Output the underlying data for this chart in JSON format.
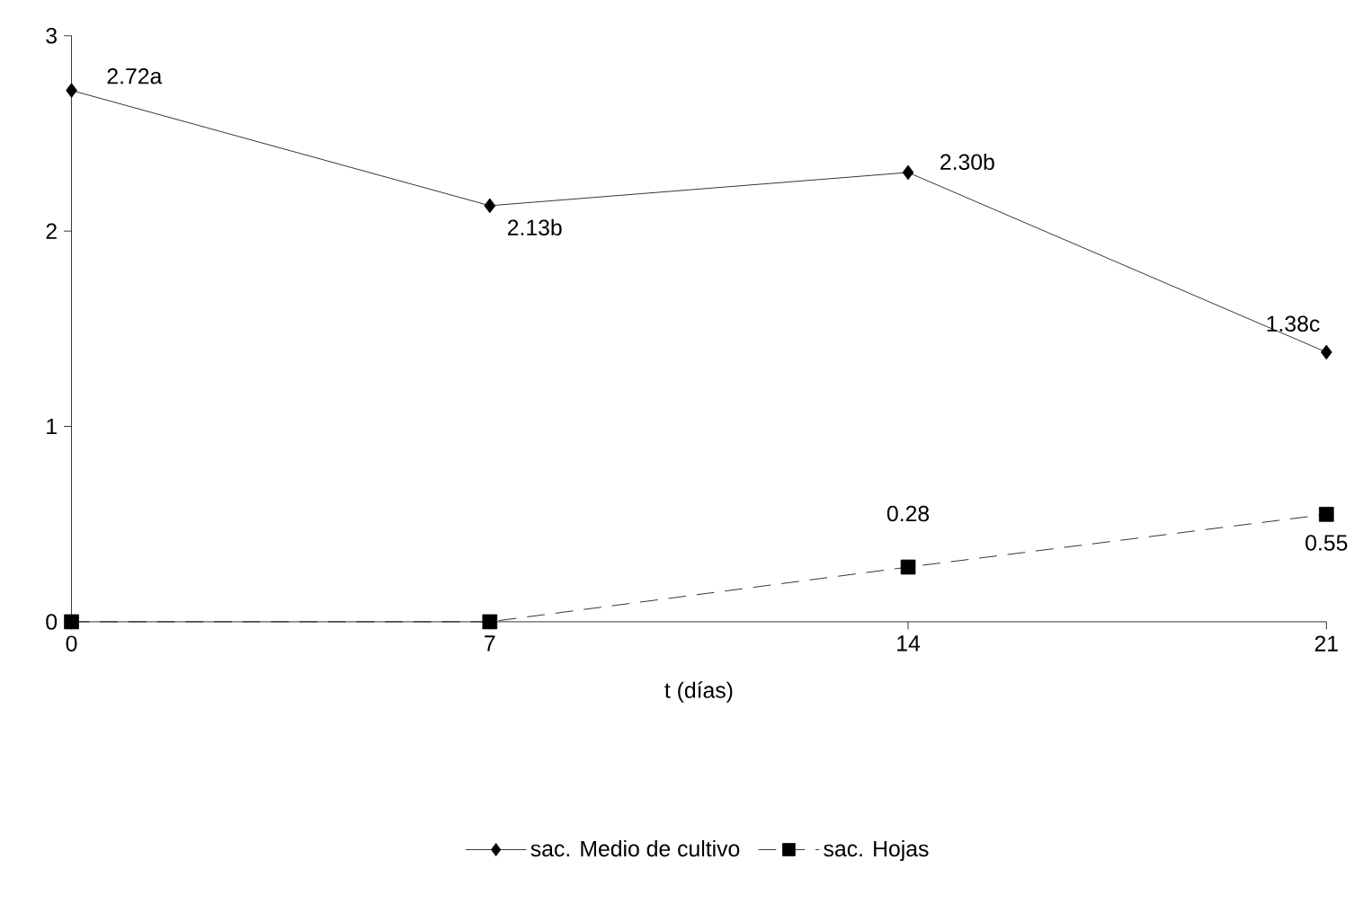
{
  "chart_data": {
    "type": "line",
    "xlabel": "t (días)",
    "x": [
      0,
      7,
      14,
      21
    ],
    "xlim": [
      0,
      21
    ],
    "xticks": [
      0,
      7,
      14,
      21
    ],
    "ylim": [
      0,
      3
    ],
    "yticks": [
      0,
      1,
      2,
      3
    ],
    "grid": false,
    "legend": "bottom",
    "series": [
      {
        "name": "sac. Medio de cultivo",
        "color": "#000000",
        "marker": "diamond",
        "line_style": "solid",
        "values": [
          2.72,
          2.13,
          2.3,
          1.38
        ],
        "value_labels": [
          "2.72a",
          "2.13b",
          "2.30b",
          "1.38c"
        ]
      },
      {
        "name": "sac. Hojas",
        "color": "#000000",
        "marker": "square",
        "line_style": "dashed",
        "values": [
          0,
          0,
          0.28,
          0.55
        ],
        "value_labels": [
          null,
          null,
          "0.28",
          "0.55"
        ]
      }
    ]
  }
}
